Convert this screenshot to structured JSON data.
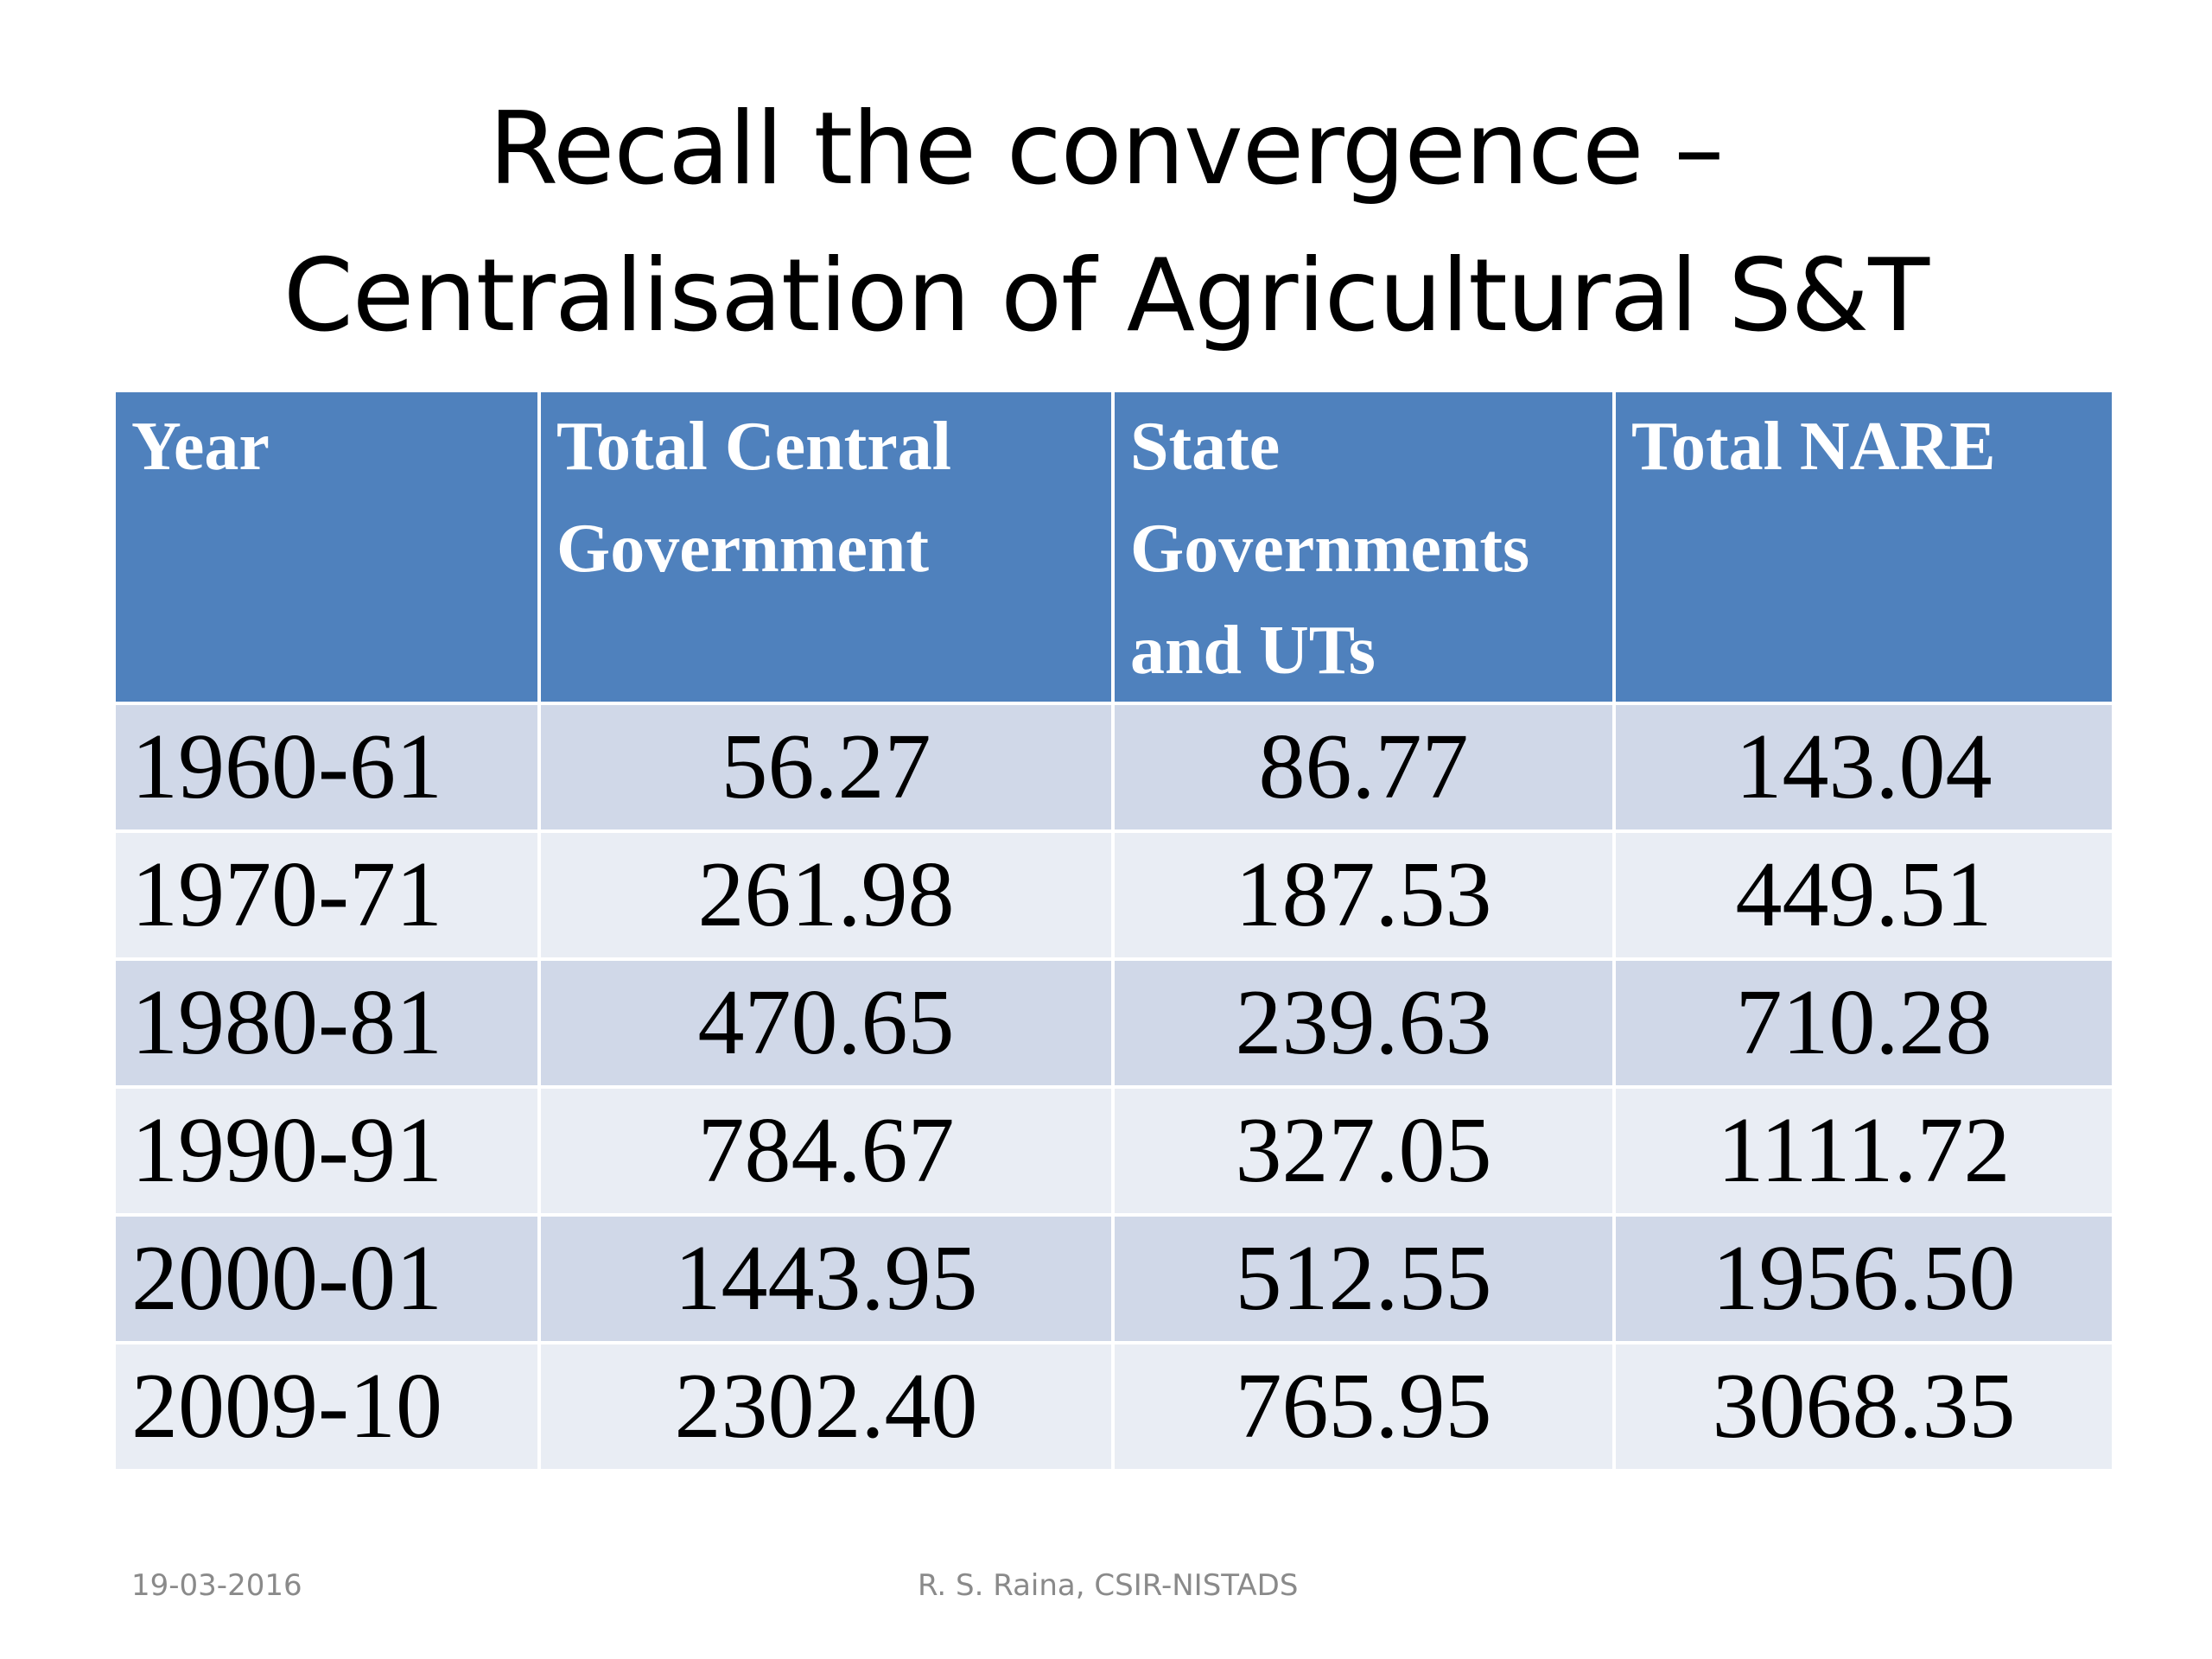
{
  "slide": {
    "title_line1": "Recall the convergence –",
    "title_line2": "Centralisation of Agricultural S&T"
  },
  "table": {
    "headers": [
      "Year",
      "Total  Central Government",
      "State Governments and UTs",
      "Total NARE"
    ],
    "rows": [
      [
        "1960-61",
        "56.27",
        "86.77",
        "143.04"
      ],
      [
        "1970-71",
        "261.98",
        "187.53",
        "449.51"
      ],
      [
        "1980-81",
        "470.65",
        "239.63",
        "710.28"
      ],
      [
        "1990-91",
        "784.67",
        "327.05",
        "1111.72"
      ],
      [
        "2000-01",
        "1443.95",
        "512.55",
        "1956.50"
      ],
      [
        "2009-10",
        "2302.40",
        "765.95",
        "3068.35"
      ]
    ]
  },
  "footer": {
    "date": "19-03-2016",
    "author": "R. S. Raina, CSIR-NISTADS"
  },
  "colors": {
    "header_bg": "#4f81bd",
    "row_band_1": "#d0d8e8",
    "row_band_2": "#e9edf4",
    "footer_text": "#8a8a8a"
  }
}
